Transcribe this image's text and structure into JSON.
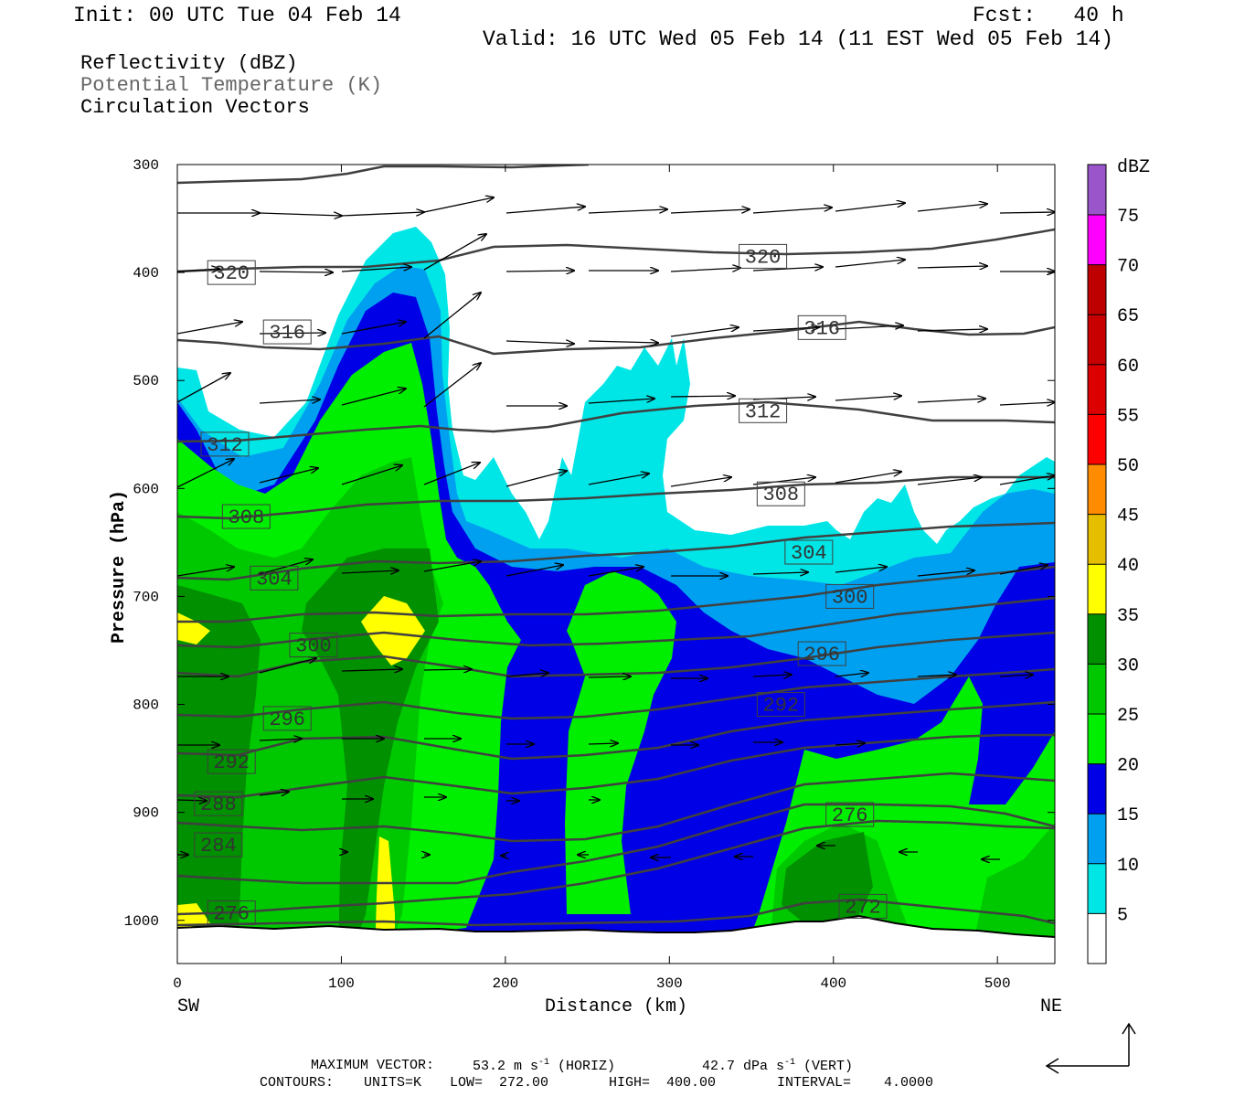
{
  "header": {
    "init": "Init: 00 UTC Tue 04 Feb 14",
    "fcst": "Fcst:   40 h",
    "valid": "Valid: 16 UTC Wed 05 Feb 14 (11 EST Wed 05 Feb 14)"
  },
  "legend": {
    "line1": "Reflectivity (dBZ)",
    "line2": "Potential Temperature (K)",
    "line3": "Circulation Vectors"
  },
  "colors": {
    "c5": "#00e6e6",
    "c10": "#00a0f0",
    "c15": "#0000e6",
    "c20": "#00ef00",
    "c25": "#00c800",
    "c30": "#009000",
    "c35": "#ffff00",
    "c40": "#e6be00",
    "c45": "#ff8c00",
    "c50": "#ff0000",
    "c55": "#dc0000",
    "c60": "#c80000",
    "c65": "#be0000",
    "c70": "#ff00ff",
    "c75": "#9955c9",
    "contour": "#404040"
  },
  "chart_data": {
    "type": "heatmap",
    "title": "Reflectivity (dBZ)",
    "xlabel": "Distance (km)",
    "ylabel": "Pressure (hPa)",
    "xlim": [
      0,
      535
    ],
    "ylim": [
      1040,
      300
    ],
    "x_ticks": [
      "0",
      "100",
      "200",
      "300",
      "400",
      "500"
    ],
    "y_ticks": [
      "300",
      "400",
      "500",
      "600",
      "700",
      "800",
      "900",
      "1000"
    ],
    "x_end_labels": {
      "left": "SW",
      "right": "NE"
    },
    "colorbar": {
      "unit": "dBZ",
      "levels": [
        "5",
        "10",
        "15",
        "20",
        "25",
        "30",
        "35",
        "40",
        "45",
        "50",
        "55",
        "60",
        "65",
        "70",
        "75"
      ]
    },
    "theta_contours": [
      {
        "label": "320",
        "x": 33,
        "p": 400
      },
      {
        "label": "320",
        "x": 357,
        "p": 385
      },
      {
        "label": "316",
        "x": 67,
        "p": 455
      },
      {
        "label": "316",
        "x": 393,
        "p": 451
      },
      {
        "label": "312",
        "x": 29,
        "p": 559
      },
      {
        "label": "312",
        "x": 357,
        "p": 528
      },
      {
        "label": "308",
        "x": 42,
        "p": 626
      },
      {
        "label": "308",
        "x": 368,
        "p": 605
      },
      {
        "label": "304",
        "x": 59,
        "p": 683
      },
      {
        "label": "304",
        "x": 385,
        "p": 659
      },
      {
        "label": "300",
        "x": 83,
        "p": 745
      },
      {
        "label": "300",
        "x": 410,
        "p": 700
      },
      {
        "label": "296",
        "x": 67,
        "p": 813
      },
      {
        "label": "296",
        "x": 393,
        "p": 753
      },
      {
        "label": "292",
        "x": 33,
        "p": 853
      },
      {
        "label": "292",
        "x": 368,
        "p": 800
      },
      {
        "label": "288",
        "x": 25,
        "p": 892
      },
      {
        "label": "284",
        "x": 25,
        "p": 930
      },
      {
        "label": "276",
        "x": 33,
        "p": 993
      },
      {
        "label": "276",
        "x": 410,
        "p": 902
      },
      {
        "label": "272",
        "x": 418,
        "p": 987
      }
    ],
    "vectors_note": "Circulation Vectors"
  },
  "footer": {
    "max_vector_label": "MAXIMUM VECTOR:",
    "max_vector_horiz": "53.2 m s",
    "horiz_unit_tag": "(HORIZ)",
    "max_vector_vert": "42.7 dPa s",
    "vert_unit_tag": "(VERT)",
    "contours_label": "CONTOURS:",
    "units": "UNITS=K",
    "low": "LOW=  272.00",
    "high": "HIGH=  400.00",
    "interval": "INTERVAL=    4.0000"
  }
}
